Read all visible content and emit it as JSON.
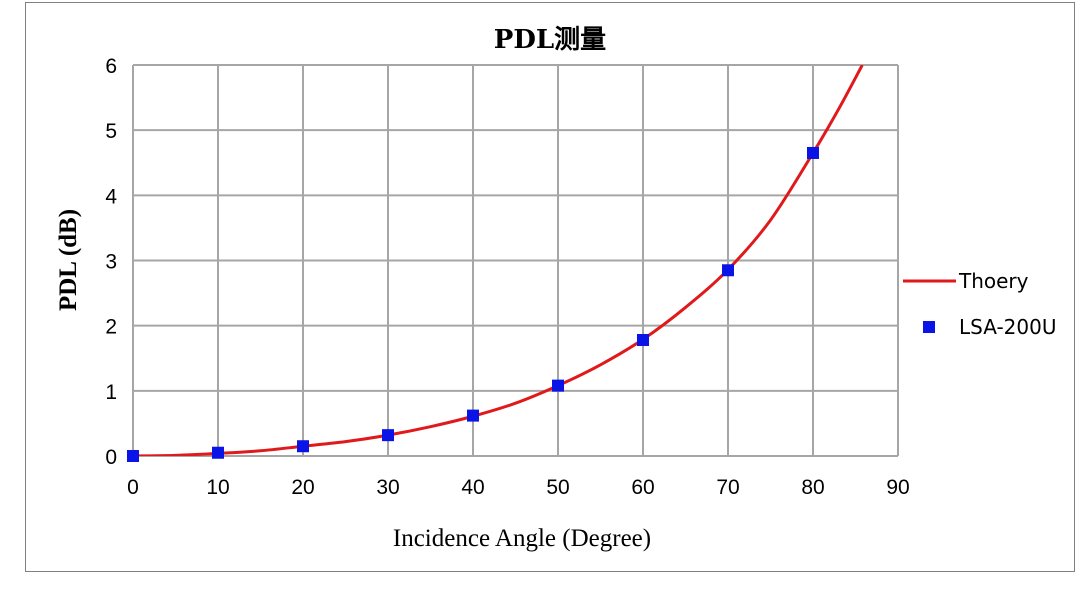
{
  "chart_data": {
    "type": "scatter",
    "title": "PDL测量",
    "xlabel": "Incidence Angle (Degree)",
    "ylabel": "PDL (dB)",
    "xlim": [
      0,
      90
    ],
    "ylim": [
      0,
      6
    ],
    "x_ticks": [
      "0",
      "10",
      "20",
      "30",
      "40",
      "50",
      "60",
      "70",
      "80",
      "90"
    ],
    "y_ticks": [
      "0",
      "1",
      "2",
      "3",
      "4",
      "5",
      "6"
    ],
    "grid": true,
    "legend_position": "right",
    "series": [
      {
        "name": "Thoery",
        "kind": "line",
        "color": "#e0191b",
        "x": [
          0,
          5,
          10,
          15,
          20,
          25,
          30,
          35,
          40,
          45,
          50,
          55,
          60,
          65,
          70,
          75,
          80,
          83,
          85.8
        ],
        "y": [
          0,
          0.01,
          0.04,
          0.08,
          0.15,
          0.22,
          0.32,
          0.45,
          0.61,
          0.81,
          1.08,
          1.4,
          1.79,
          2.28,
          2.86,
          3.62,
          4.65,
          5.32,
          6.0
        ]
      },
      {
        "name": "LSA-200U",
        "kind": "scatter",
        "marker": "square",
        "color": "#0a14e6",
        "x": [
          0,
          10,
          20,
          30,
          40,
          50,
          60,
          70,
          80
        ],
        "y": [
          0,
          0.05,
          0.15,
          0.32,
          0.62,
          1.08,
          1.78,
          2.85,
          4.65
        ]
      }
    ]
  }
}
